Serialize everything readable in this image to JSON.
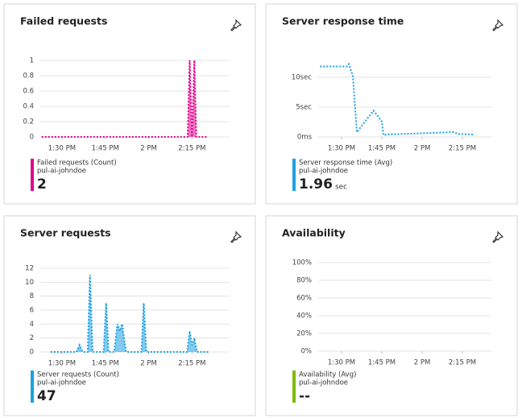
{
  "chart_data": [
    {
      "type": "area",
      "title": "Failed requests",
      "xlim": [
        802.5,
        868
      ],
      "xticks": [
        {
          "value": 810,
          "label": "1:30 PM"
        },
        {
          "value": 825,
          "label": "1:45 PM"
        },
        {
          "value": 840,
          "label": "2 PM"
        },
        {
          "value": 855,
          "label": "2:15 PM"
        }
      ],
      "ylim": [
        0,
        1
      ],
      "yticks": [
        0,
        0.2,
        0.4,
        0.6,
        0.8,
        1
      ],
      "grid": true,
      "series": [
        {
          "name": "Failed requests (Count)",
          "resource": "pul-ai-johndoe",
          "color": "#e3008c",
          "x": [
            803,
            853.5,
            854.2,
            855,
            855.8,
            856.5,
            860.6
          ],
          "values": [
            0,
            0,
            1,
            0,
            1,
            0,
            0
          ]
        }
      ],
      "summary": 2
    },
    {
      "type": "line",
      "title": "Server response time",
      "xlim": [
        801.3,
        865.8
      ],
      "xticks": [
        {
          "value": 810,
          "label": "1:30 PM"
        },
        {
          "value": 825,
          "label": "1:45 PM"
        },
        {
          "value": 840,
          "label": "2 PM"
        },
        {
          "value": 855,
          "label": "2:15 PM"
        }
      ],
      "ylim": [
        0,
        12
      ],
      "yticks": [
        {
          "value": 0,
          "label": "0ms"
        },
        {
          "value": 5,
          "label": "5sec"
        },
        {
          "value": 10,
          "label": "10sec"
        }
      ],
      "grid": true,
      "series": [
        {
          "name": "Server response time (Avg)",
          "resource": "pul-ai-johndoe",
          "color": "#1ba1e2",
          "x": [
            802,
            812,
            812.7,
            814.2,
            815.7,
            821.9,
            825,
            825.6,
            826.8,
            851.6,
            853.7,
            859
          ],
          "values": [
            11.8,
            11.8,
            12.2,
            10.2,
            0.8,
            4.4,
            2.6,
            0.3,
            0.4,
            0.8,
            0.5,
            0.4
          ]
        }
      ],
      "summary": 1.96,
      "summary_unit": "sec"
    },
    {
      "type": "area",
      "title": "Server requests",
      "xlim": [
        802.5,
        868
      ],
      "xticks": [
        {
          "value": 810,
          "label": "1:30 PM"
        },
        {
          "value": 825,
          "label": "1:45 PM"
        },
        {
          "value": 840,
          "label": "2 PM"
        },
        {
          "value": 855,
          "label": "2:15 PM"
        }
      ],
      "ylim": [
        0,
        12
      ],
      "yticks": [
        0,
        2,
        4,
        6,
        8,
        10,
        12
      ],
      "grid": true,
      "series": [
        {
          "name": "Server requests (Count)",
          "resource": "pul-ai-johndoe",
          "color": "#1ba1e2",
          "x": [
            806.1,
            815,
            816.1,
            817.2,
            818.9,
            819.7,
            820.6,
            824.4,
            825.3,
            826.1,
            828.1,
            829.2,
            830,
            830.8,
            832.2,
            837.5,
            838.3,
            839.2,
            853.3,
            854.2,
            855,
            855.8,
            856.7,
            860.6
          ],
          "values": [
            0,
            0,
            1,
            0,
            0,
            11,
            0,
            0,
            7,
            0,
            0,
            4,
            3,
            4,
            0,
            0,
            7,
            0,
            0,
            3,
            1,
            2,
            0,
            0
          ]
        }
      ],
      "summary": 47
    },
    {
      "type": "line",
      "title": "Availability",
      "xlim": [
        801.3,
        865.8
      ],
      "xticks": [
        {
          "value": 810,
          "label": "1:30 PM"
        },
        {
          "value": 825,
          "label": "1:45 PM"
        },
        {
          "value": 840,
          "label": "2 PM"
        },
        {
          "value": 855,
          "label": "2:15 PM"
        }
      ],
      "ylim": [
        0,
        100
      ],
      "yticks": [
        {
          "value": 0,
          "label": "0%"
        },
        {
          "value": 20,
          "label": "20%"
        },
        {
          "value": 40,
          "label": "40%"
        },
        {
          "value": 60,
          "label": "60%"
        },
        {
          "value": 80,
          "label": "80%"
        },
        {
          "value": 100,
          "label": "100%"
        }
      ],
      "grid": true,
      "series": [
        {
          "name": "Availability (Avg)",
          "resource": "pul-ai-johndoe",
          "color": "#7fba00",
          "x": [],
          "values": []
        }
      ],
      "summary": "--"
    }
  ]
}
